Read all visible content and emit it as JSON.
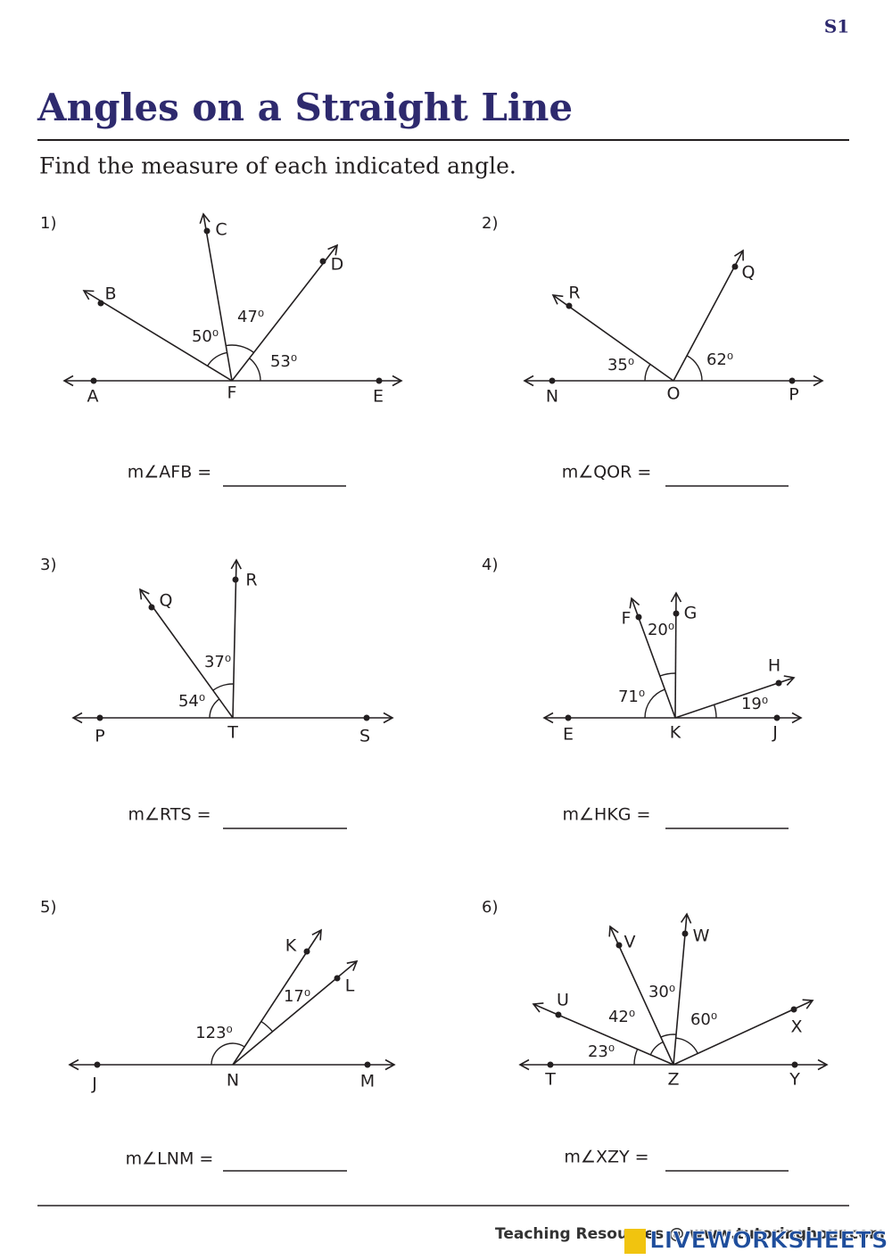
{
  "header": {
    "code": "S1",
    "title": "Angles on a Straight Line",
    "instruction": "Find the measure of each indicated angle."
  },
  "problems": [
    {
      "number": "1)",
      "points": [
        "A",
        "F",
        "E",
        "B",
        "C",
        "D"
      ],
      "angles": [
        "50⁰",
        "47⁰",
        "53⁰"
      ],
      "question": "m∠AFB ="
    },
    {
      "number": "2)",
      "points": [
        "N",
        "O",
        "P",
        "R",
        "Q"
      ],
      "angles": [
        "35⁰",
        "62⁰"
      ],
      "question": "m∠QOR ="
    },
    {
      "number": "3)",
      "points": [
        "P",
        "T",
        "S",
        "Q",
        "R"
      ],
      "angles": [
        "54⁰",
        "37⁰"
      ],
      "question": "m∠RTS ="
    },
    {
      "number": "4)",
      "points": [
        "E",
        "K",
        "J",
        "F",
        "G",
        "H"
      ],
      "angles": [
        "71⁰",
        "20⁰",
        "19⁰"
      ],
      "question": "m∠HKG ="
    },
    {
      "number": "5)",
      "points": [
        "J",
        "N",
        "M",
        "K",
        "L"
      ],
      "angles": [
        "123⁰",
        "17⁰"
      ],
      "question": "m∠LNM ="
    },
    {
      "number": "6)",
      "points": [
        "T",
        "Z",
        "Y",
        "U",
        "V",
        "W",
        "X"
      ],
      "angles": [
        "23⁰",
        "42⁰",
        "30⁰",
        "60⁰"
      ],
      "question": "m∠XZY ="
    }
  ],
  "footer": {
    "credit": "Teaching Resources @ www.tutoringhour.com",
    "watermark": "LIVEWORKSHEETS"
  }
}
